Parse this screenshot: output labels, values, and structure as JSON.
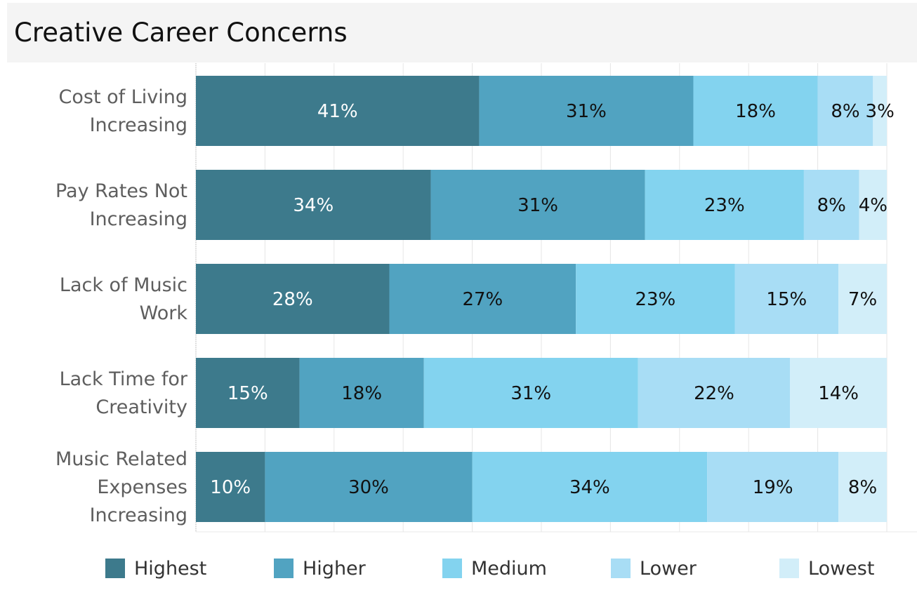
{
  "chart_data": {
    "type": "bar",
    "orientation": "horizontal",
    "stacked": true,
    "title": "Creative Career Concerns",
    "xlabel": "",
    "ylabel": "",
    "xlim": [
      0,
      100
    ],
    "grid": true,
    "legend_position": "bottom",
    "categories": [
      [
        "Cost of Living",
        "Increasing"
      ],
      [
        "Pay Rates Not",
        "Increasing"
      ],
      [
        "Lack of Music",
        "Work"
      ],
      [
        "Lack Time for",
        "Creativity"
      ],
      [
        "Music Related",
        "Expenses",
        "Increasing"
      ]
    ],
    "series": [
      {
        "name": "Highest",
        "color": "#3d7a8c",
        "label_color": "#ffffff",
        "values": [
          41,
          34,
          28,
          15,
          10
        ]
      },
      {
        "name": "Higher",
        "color": "#51a3c1",
        "label_color": "#111111",
        "values": [
          31,
          31,
          27,
          18,
          30
        ]
      },
      {
        "name": "Medium",
        "color": "#83d3ef",
        "label_color": "#111111",
        "values": [
          18,
          23,
          23,
          31,
          34
        ]
      },
      {
        "name": "Lower",
        "color": "#a8ddf5",
        "label_color": "#111111",
        "values": [
          8,
          8,
          15,
          22,
          19
        ]
      },
      {
        "name": "Lowest",
        "color": "#d2eef9",
        "label_color": "#111111",
        "values": [
          3,
          4,
          7,
          14,
          8
        ]
      }
    ],
    "data_labels": [
      [
        "41%",
        "31%",
        "18%",
        "8%",
        "3%"
      ],
      [
        "34%",
        "31%",
        "23%",
        "8%",
        "4%"
      ],
      [
        "28%",
        "27%",
        "23%",
        "15%",
        "7%"
      ],
      [
        "15%",
        "18%",
        "31%",
        "22%",
        "14%"
      ],
      [
        "10%",
        "30%",
        "34%",
        "19%",
        "8%"
      ]
    ]
  }
}
